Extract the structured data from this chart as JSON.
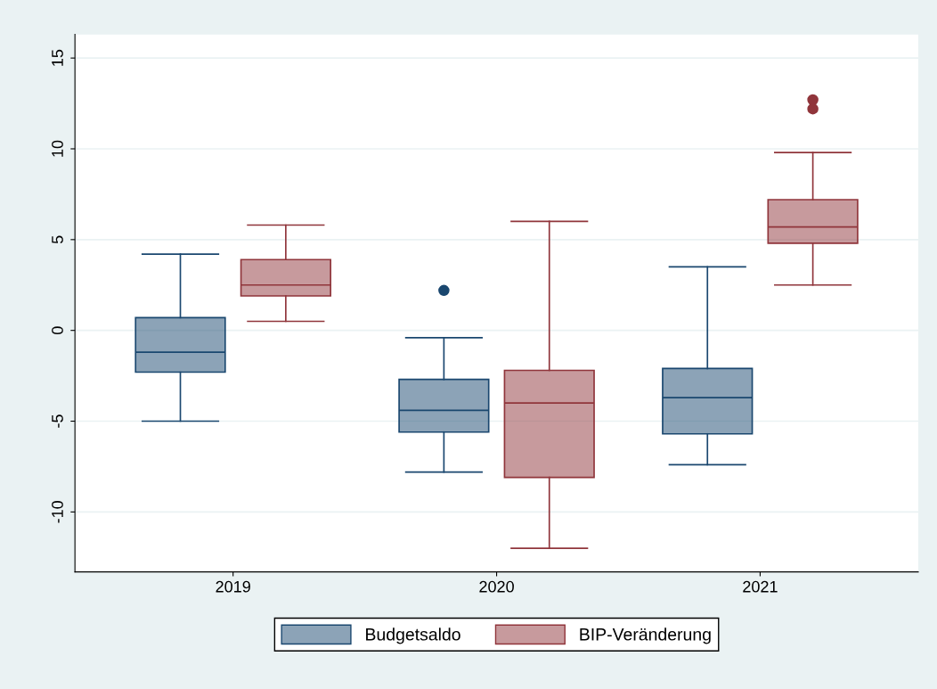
{
  "chart_data": {
    "type": "box",
    "categories": [
      "2019",
      "2020",
      "2021"
    ],
    "series": [
      {
        "name": "Budgetsaldo",
        "color": "#1a476f",
        "boxes": [
          {
            "low": -5.0,
            "q1": -2.3,
            "median": -1.2,
            "q3": 0.7,
            "high": 4.2
          },
          {
            "low": -7.8,
            "q1": -5.6,
            "median": -4.4,
            "q3": -2.7,
            "high": -0.4,
            "outliers": [
              2.2
            ]
          },
          {
            "low": -7.4,
            "q1": -5.7,
            "median": -3.7,
            "q3": -2.1,
            "high": 3.5
          }
        ]
      },
      {
        "name": "BIP-Veränderung",
        "color": "#90353b",
        "boxes": [
          {
            "low": 0.5,
            "q1": 1.9,
            "median": 2.5,
            "q3": 3.9,
            "high": 5.8
          },
          {
            "low": -12.0,
            "q1": -8.1,
            "median": -4.0,
            "q3": -2.2,
            "high": 6.0
          },
          {
            "low": 2.5,
            "q1": 4.8,
            "median": 5.7,
            "q3": 7.2,
            "high": 9.8,
            "outliers": [
              12.2,
              12.7
            ]
          }
        ]
      }
    ],
    "ylim": [
      -13.3,
      16.3
    ],
    "yticks": [
      -10,
      -5,
      0,
      5,
      10,
      15
    ],
    "grid": "y",
    "legend": "bottom"
  }
}
